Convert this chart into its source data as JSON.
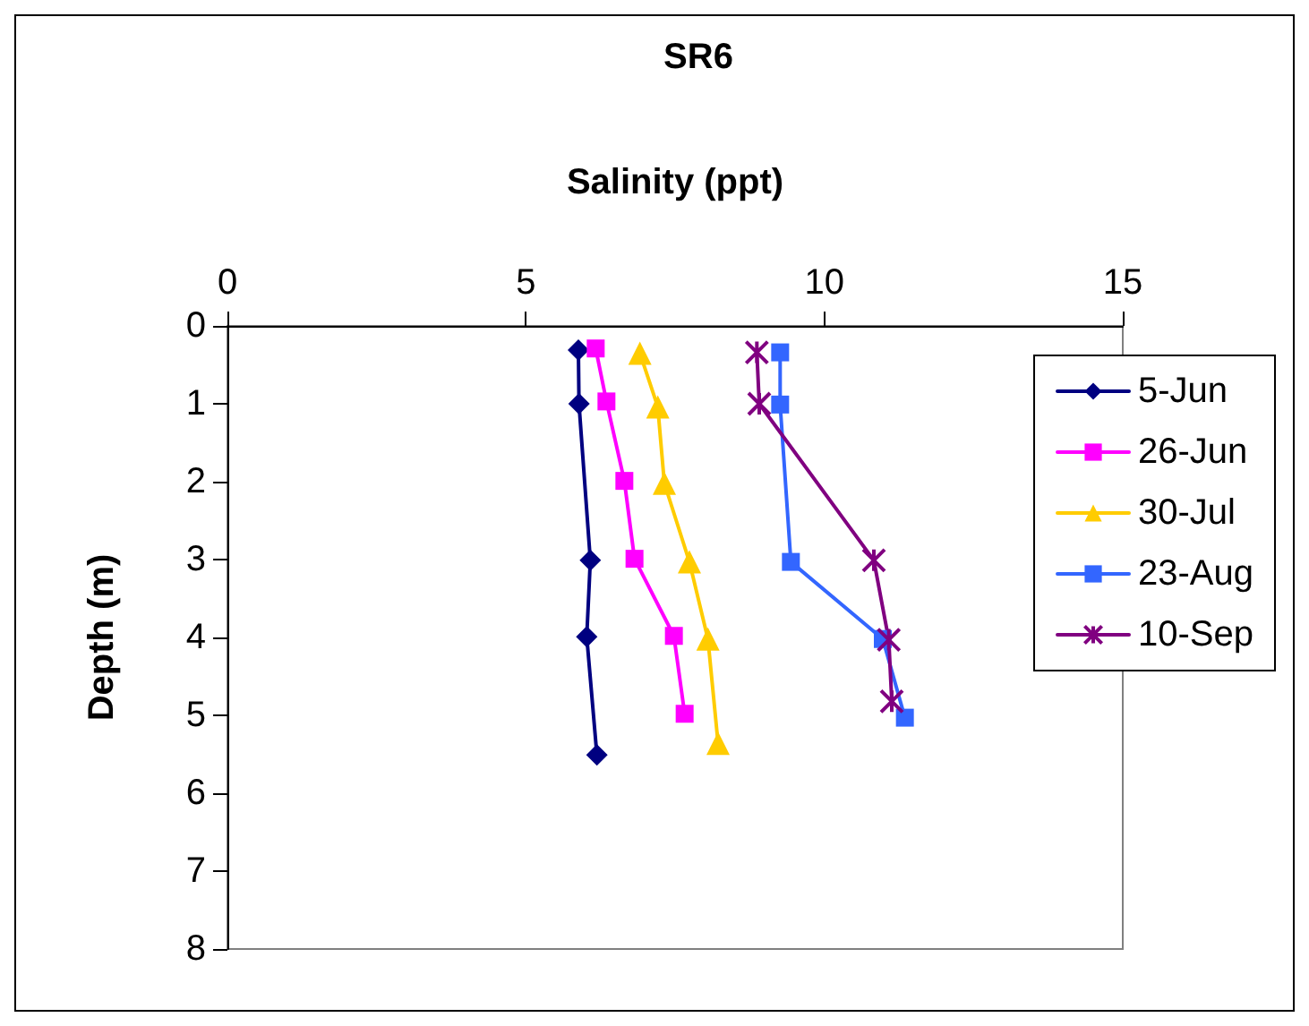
{
  "chart_data": {
    "type": "line",
    "title": "SR6",
    "xlabel": "Salinity (ppt)",
    "ylabel": "Depth (m)",
    "xlim": [
      0,
      15
    ],
    "xticks": [
      0,
      5,
      10,
      15
    ],
    "ylim": [
      8,
      0
    ],
    "yticks": [
      0,
      1,
      2,
      3,
      4,
      5,
      6,
      7,
      8
    ],
    "grid": false,
    "legend": "right",
    "line_style": "solid",
    "series": [
      {
        "name": "5-Jun",
        "color": "#000080",
        "marker": "diamond",
        "x": [
          5.88,
          5.89,
          6.08,
          6.02,
          6.19
        ],
        "values": [
          0.31,
          1.0,
          3.01,
          3.99,
          5.51
        ]
      },
      {
        "name": "26-Jun",
        "color": "#ff00ff",
        "marker": "square",
        "x": [
          6.17,
          6.35,
          6.65,
          6.82,
          7.48,
          7.66
        ],
        "values": [
          0.29,
          0.97,
          1.99,
          2.99,
          3.98,
          4.98
        ]
      },
      {
        "name": "30-Jul",
        "color": "#ffcc00",
        "marker": "triangle",
        "x": [
          6.91,
          7.21,
          7.32,
          7.74,
          8.05,
          8.22
        ],
        "values": [
          0.35,
          1.04,
          2.02,
          3.03,
          4.02,
          5.36
        ]
      },
      {
        "name": "23-Aug",
        "color": "#3366ff",
        "marker": "square",
        "x": [
          9.26,
          9.26,
          9.44,
          10.98,
          11.35
        ],
        "values": [
          0.34,
          1.01,
          3.03,
          4.02,
          5.03
        ]
      },
      {
        "name": "10-Sep",
        "color": "#800080",
        "marker": "cross",
        "x": [
          8.87,
          8.91,
          10.83,
          11.08,
          11.13
        ],
        "values": [
          0.34,
          1.0,
          3.01,
          4.03,
          4.82
        ]
      }
    ]
  }
}
